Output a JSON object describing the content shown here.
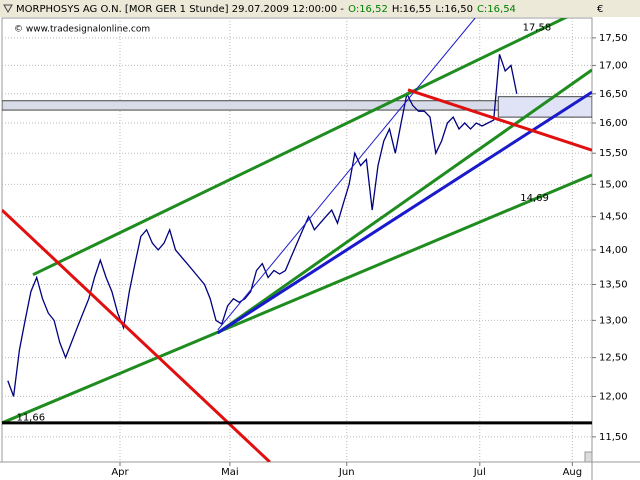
{
  "chart_data": {
    "type": "line",
    "title": "MORPHOSYS AG O.N. [MOR GER  1 Stunde] 29.07.2009 12:00:00 -",
    "quote": [
      {
        "label": "O:16,52",
        "color": "#008000"
      },
      {
        "label": "H:16,55",
        "color": "#000000"
      },
      {
        "label": "L:16,50",
        "color": "#000000"
      },
      {
        "label": "C:16,54",
        "color": "#008000"
      }
    ],
    "watermark": "© www.tradesignalonline.com",
    "y_unit": "€",
    "log_scale": true,
    "grid": true,
    "xlim": [
      0,
      102
    ],
    "ylim": [
      11.2,
      17.87
    ],
    "xticks": [
      {
        "value": 20.4,
        "label": "Apr"
      },
      {
        "value": 39.4,
        "label": "Mai"
      },
      {
        "value": 59.6,
        "label": "Jun"
      },
      {
        "value": 82.6,
        "label": "Jul"
      },
      {
        "value": 98.6,
        "label": "Aug"
      }
    ],
    "yticks": [
      {
        "value": 11.5,
        "label": "11,50"
      },
      {
        "value": 12,
        "label": "12,00"
      },
      {
        "value": 12.5,
        "label": "12,50"
      },
      {
        "value": 13,
        "label": "13,00"
      },
      {
        "value": 13.5,
        "label": "13,50"
      },
      {
        "value": 14,
        "label": "14,00"
      },
      {
        "value": 14.5,
        "label": "14,50"
      },
      {
        "value": 15,
        "label": "15,00"
      },
      {
        "value": 15.5,
        "label": "15,50"
      },
      {
        "value": 16,
        "label": "16,00"
      },
      {
        "value": 16.5,
        "label": "16,50"
      },
      {
        "value": 17,
        "label": "17,00"
      },
      {
        "value": 17.5,
        "label": "17,50"
      }
    ],
    "series": [
      {
        "color": "#000080",
        "values": [
          12.2,
          12.0,
          12.6,
          13.0,
          13.4,
          13.6,
          13.3,
          13.1,
          13.0,
          12.7,
          12.5,
          12.7,
          12.9,
          13.1,
          13.3,
          13.6,
          13.85,
          13.6,
          13.4,
          13.1,
          12.9,
          13.4,
          13.8,
          14.2,
          14.3,
          14.1,
          14.0,
          14.1,
          14.3,
          14.0,
          13.9,
          13.8,
          13.7,
          13.6,
          13.5,
          13.3,
          13.0,
          12.95,
          13.2,
          13.3,
          13.25,
          13.3,
          13.4,
          13.7,
          13.8,
          13.6,
          13.7,
          13.65,
          13.7,
          13.9,
          14.1,
          14.3,
          14.5,
          14.3,
          14.4,
          14.5,
          14.6,
          14.4,
          14.7,
          15.0,
          15.5,
          15.3,
          15.4,
          14.6,
          15.3,
          15.7,
          15.9,
          15.5,
          16.0,
          16.5,
          16.3,
          16.2,
          16.2,
          16.1,
          15.5,
          15.7,
          16.0,
          16.1,
          15.9,
          16.0,
          15.9,
          16.0,
          15.95,
          16.0,
          16.05,
          17.2,
          16.9,
          17.0,
          16.5
        ]
      }
    ],
    "zones": [
      {
        "x": [
          0,
          102
        ],
        "y": [
          16.22,
          16.38
        ],
        "color": "#d8dce8"
      },
      {
        "x": [
          85.8,
          102
        ],
        "y": [
          16.1,
          16.45
        ],
        "color": "#dfe3f5"
      }
    ],
    "trendlines": [
      {
        "x": [
          5.36,
          102
        ],
        "y": [
          13.64,
          18.12
        ],
        "color": "#1e8c1e",
        "width": 3
      },
      {
        "x": [
          0,
          102
        ],
        "y": [
          11.67,
          15.15
        ],
        "color": "#1e8c1e",
        "width": 3
      },
      {
        "x": [
          37.3,
          102
        ],
        "y": [
          12.83,
          16.92
        ],
        "color": "#1e8c1e",
        "width": 3
      },
      {
        "x": [
          37.3,
          102
        ],
        "y": [
          12.83,
          16.53
        ],
        "color": "#1a1acc",
        "width": 3
      },
      {
        "x": [
          37.3,
          81.8
        ],
        "y": [
          12.87,
          17.87
        ],
        "color": "#1a1acc",
        "width": 1
      },
      {
        "x": [
          0,
          46.3
        ],
        "y": [
          14.6,
          11.2
        ],
        "color": "#e01010",
        "width": 3
      },
      {
        "x": [
          70.2,
          102
        ],
        "y": [
          16.57,
          15.55
        ],
        "color": "#e01010",
        "width": 3
      },
      {
        "x": [
          0,
          102
        ],
        "y": [
          11.67,
          11.67
        ],
        "color": "#000000",
        "width": 3
      }
    ],
    "annotations": [
      {
        "x": 90,
        "value": 17.58,
        "label": "17,58",
        "color": "#1e8c1e"
      },
      {
        "x": 89.6,
        "value": 14.69,
        "label": "14,69",
        "color": "#1e8c1e"
      },
      {
        "x": 2.5,
        "value": 11.66,
        "label": "11,66",
        "color": "#000000"
      }
    ]
  }
}
